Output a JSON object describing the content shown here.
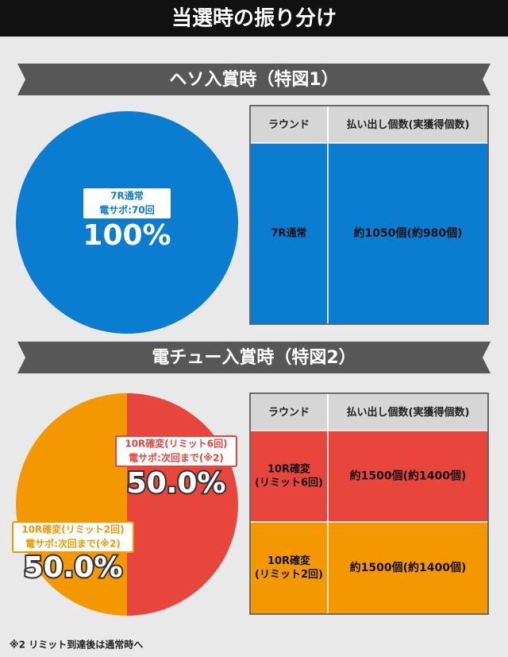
{
  "header": {
    "title": "当選時の振り分け"
  },
  "footnote": "※2 リミット到達後は通常時へ",
  "chart_data": [
    {
      "type": "pie",
      "title": "ヘソ入賞時（特図1）",
      "categories": [
        "7R通常"
      ],
      "details": [
        "電サポ:70回"
      ],
      "values": [
        100
      ],
      "value_labels": [
        "100%"
      ],
      "colors": [
        "#0a7dd0"
      ]
    },
    {
      "type": "pie",
      "title": "電チュー入賞時（特図2）",
      "categories": [
        "10R確変(リミット6回)",
        "10R確変(リミット2回)"
      ],
      "details": [
        "電サポ:次回まで(※2)",
        "電サポ:次回まで(※2)"
      ],
      "values": [
        50,
        50
      ],
      "value_labels": [
        "50.0%",
        "50.0%"
      ],
      "colors": [
        "#e8453c",
        "#f39800"
      ]
    }
  ],
  "tables": [
    {
      "columns": [
        "ラウンド",
        "払い出し個数(実獲得個数)"
      ],
      "rows": [
        [
          [
            "7R通常"
          ],
          "約1050個(約980個)"
        ]
      ],
      "row_colors": [
        "#0a7dd0"
      ]
    },
    {
      "columns": [
        "ラウンド",
        "払い出し個数(実獲得個数)"
      ],
      "rows": [
        [
          [
            "10R確変",
            "(リミット6回)"
          ],
          "約1500個(約1400個)"
        ],
        [
          [
            "10R確変",
            "(リミット2回)"
          ],
          "約1500個(約1400個)"
        ]
      ],
      "row_colors": [
        "#e8453c",
        "#f39800"
      ]
    }
  ]
}
